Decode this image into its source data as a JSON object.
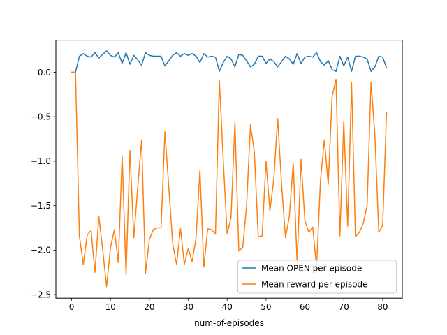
{
  "chart_data": {
    "type": "line",
    "xlabel": "num-of-episodes",
    "ylabel": "",
    "xlim": [
      -4.05,
      85.05
    ],
    "ylim": [
      -2.54,
      0.36
    ],
    "x_ticks": [
      0,
      10,
      20,
      30,
      40,
      50,
      60,
      70,
      80
    ],
    "y_ticks": [
      0.0,
      -0.5,
      -1.0,
      -1.5,
      -2.0,
      -2.5
    ],
    "y_tick_labels": [
      "0.0",
      "−0.5",
      "−1.0",
      "−1.5",
      "−2.0",
      "−2.5"
    ],
    "x": [
      0,
      1,
      2,
      3,
      4,
      5,
      6,
      7,
      8,
      9,
      10,
      11,
      12,
      13,
      14,
      15,
      16,
      17,
      18,
      19,
      20,
      21,
      22,
      23,
      24,
      25,
      26,
      27,
      28,
      29,
      30,
      31,
      32,
      33,
      34,
      35,
      36,
      37,
      38,
      39,
      40,
      41,
      42,
      43,
      44,
      45,
      46,
      47,
      48,
      49,
      50,
      51,
      52,
      53,
      54,
      55,
      56,
      57,
      58,
      59,
      60,
      61,
      62,
      63,
      64,
      65,
      66,
      67,
      68,
      69,
      70,
      71,
      72,
      73,
      74,
      75,
      76,
      77,
      78,
      79,
      80,
      81
    ],
    "grid": false,
    "legend_position": "bottom-right",
    "series": [
      {
        "name": "Mean OPEN per episode",
        "color": "#1f77b4",
        "values": [
          0.0,
          0.0,
          0.18,
          0.21,
          0.18,
          0.17,
          0.22,
          0.16,
          0.2,
          0.24,
          0.19,
          0.17,
          0.22,
          0.1,
          0.22,
          0.09,
          0.19,
          0.14,
          0.08,
          0.22,
          0.19,
          0.18,
          0.18,
          0.18,
          0.07,
          0.13,
          0.19,
          0.22,
          0.18,
          0.21,
          0.19,
          0.21,
          0.18,
          0.11,
          0.21,
          0.17,
          0.18,
          0.17,
          0.01,
          0.11,
          0.18,
          0.15,
          0.06,
          0.2,
          0.19,
          0.13,
          0.06,
          0.09,
          0.18,
          0.18,
          0.1,
          0.15,
          0.12,
          0.06,
          0.12,
          0.18,
          0.15,
          0.09,
          0.21,
          0.1,
          0.17,
          0.18,
          0.17,
          0.22,
          0.12,
          0.08,
          0.13,
          0.03,
          0.01,
          0.18,
          0.07,
          0.17,
          0.01,
          0.18,
          0.18,
          0.17,
          0.15,
          0.01,
          0.06,
          0.18,
          0.17,
          0.05
        ]
      },
      {
        "name": "Mean reward per episode",
        "color": "#ff7f0e",
        "values": [
          0.0,
          0.0,
          -1.84,
          -2.16,
          -1.83,
          -1.78,
          -2.25,
          -1.62,
          -2.0,
          -2.41,
          -1.97,
          -1.77,
          -2.14,
          -0.94,
          -2.28,
          -0.88,
          -1.86,
          -1.3,
          -0.76,
          -2.26,
          -1.88,
          -1.77,
          -1.75,
          -1.75,
          -0.67,
          -1.3,
          -1.93,
          -2.16,
          -1.76,
          -2.16,
          -1.98,
          -2.13,
          -1.86,
          -1.1,
          -2.19,
          -1.76,
          -1.77,
          -1.82,
          -0.09,
          -0.99,
          -1.82,
          -1.63,
          -0.56,
          -2.01,
          -1.97,
          -1.5,
          -0.59,
          -0.9,
          -1.85,
          -1.84,
          -1.0,
          -1.56,
          -1.2,
          -0.52,
          -1.26,
          -1.86,
          -1.62,
          -1.02,
          -2.15,
          -0.98,
          -1.67,
          -1.8,
          -1.74,
          -2.19,
          -1.22,
          -0.76,
          -1.26,
          -0.27,
          -0.08,
          -1.84,
          -0.55,
          -1.73,
          -0.12,
          -1.85,
          -1.8,
          -1.7,
          -1.5,
          -0.11,
          -0.71,
          -1.8,
          -1.72,
          -0.45
        ]
      }
    ]
  }
}
